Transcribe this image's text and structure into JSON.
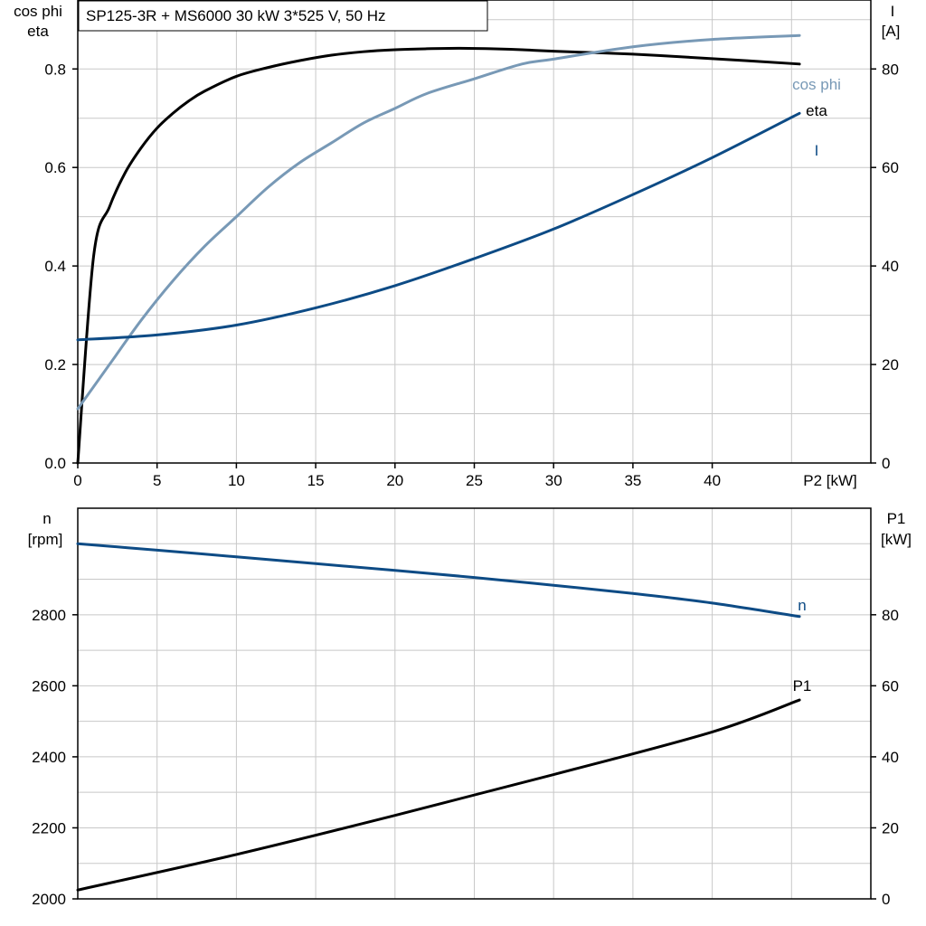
{
  "chart_data": [
    {
      "type": "line",
      "title": "SP125-3R + MS6000   30 kW   3*525 V, 50 Hz",
      "xlabel": "P2 [kW]",
      "xlim": [
        0,
        50
      ],
      "x_ticks": [
        0,
        5,
        10,
        15,
        20,
        25,
        30,
        35,
        40
      ],
      "y_left_label_line1": "cos phi",
      "y_left_label_line2": "eta",
      "y_left_lim": [
        0,
        0.94
      ],
      "y_left_ticks": [
        "0.0",
        "0.2",
        "0.4",
        "0.6",
        "0.8"
      ],
      "y_right_label_line1": "I",
      "y_right_label_line2": "[A]",
      "y_right_lim": [
        0,
        94
      ],
      "y_right_ticks": [
        "0",
        "20",
        "40",
        "60",
        "80"
      ],
      "grid": true,
      "series": [
        {
          "name": "eta",
          "axis": "left",
          "color": "#000000",
          "x": [
            0,
            1,
            2,
            3,
            4,
            5,
            6,
            7,
            8,
            10,
            12,
            14,
            16,
            18,
            20,
            22,
            24,
            26,
            28,
            30,
            35,
            40,
            45.5
          ],
          "y": [
            0,
            0.42,
            0.52,
            0.59,
            0.64,
            0.68,
            0.71,
            0.735,
            0.755,
            0.785,
            0.803,
            0.817,
            0.828,
            0.835,
            0.839,
            0.841,
            0.842,
            0.841,
            0.839,
            0.836,
            0.83,
            0.821,
            0.81
          ]
        },
        {
          "name": "cos phi",
          "axis": "left",
          "color": "#7899b6",
          "x": [
            0,
            2,
            4,
            6,
            8,
            10,
            12,
            14,
            16,
            18,
            20,
            22,
            25,
            28,
            30,
            35,
            40,
            45.5
          ],
          "y": [
            0.11,
            0.2,
            0.29,
            0.37,
            0.44,
            0.5,
            0.56,
            0.61,
            0.65,
            0.69,
            0.72,
            0.75,
            0.78,
            0.81,
            0.82,
            0.845,
            0.86,
            0.868
          ]
        },
        {
          "name": "I",
          "axis": "right",
          "color": "#0d4b85",
          "x": [
            0,
            5,
            10,
            15,
            20,
            25,
            30,
            35,
            40,
            45.5
          ],
          "y": [
            25,
            26,
            28,
            31.5,
            36,
            41.5,
            47.5,
            54.5,
            62,
            71
          ]
        }
      ]
    },
    {
      "type": "line",
      "xlim": [
        0,
        50
      ],
      "grid": true,
      "y_left_label_line1": "n",
      "y_left_label_line2": "[rpm]",
      "y_left_lim": [
        2000,
        3100
      ],
      "y_left_ticks": [
        "2000",
        "2200",
        "2400",
        "2600",
        "2800"
      ],
      "y_right_label_line1": "P1",
      "y_right_label_line2": "[kW]",
      "y_right_lim": [
        0,
        110
      ],
      "y_right_ticks": [
        "0",
        "20",
        "40",
        "60",
        "80"
      ],
      "series": [
        {
          "name": "n",
          "axis": "left",
          "color": "#0d4b85",
          "x": [
            0,
            5,
            10,
            15,
            20,
            25,
            30,
            35,
            40,
            45.5
          ],
          "y": [
            3000,
            2982,
            2963,
            2944,
            2925,
            2905,
            2883,
            2860,
            2833,
            2795
          ]
        },
        {
          "name": "P1",
          "axis": "right",
          "color": "#000000",
          "x": [
            0,
            10,
            20,
            30,
            40,
            45.5
          ],
          "y": [
            2.5,
            12.5,
            23.5,
            35,
            47,
            56
          ]
        }
      ]
    }
  ]
}
